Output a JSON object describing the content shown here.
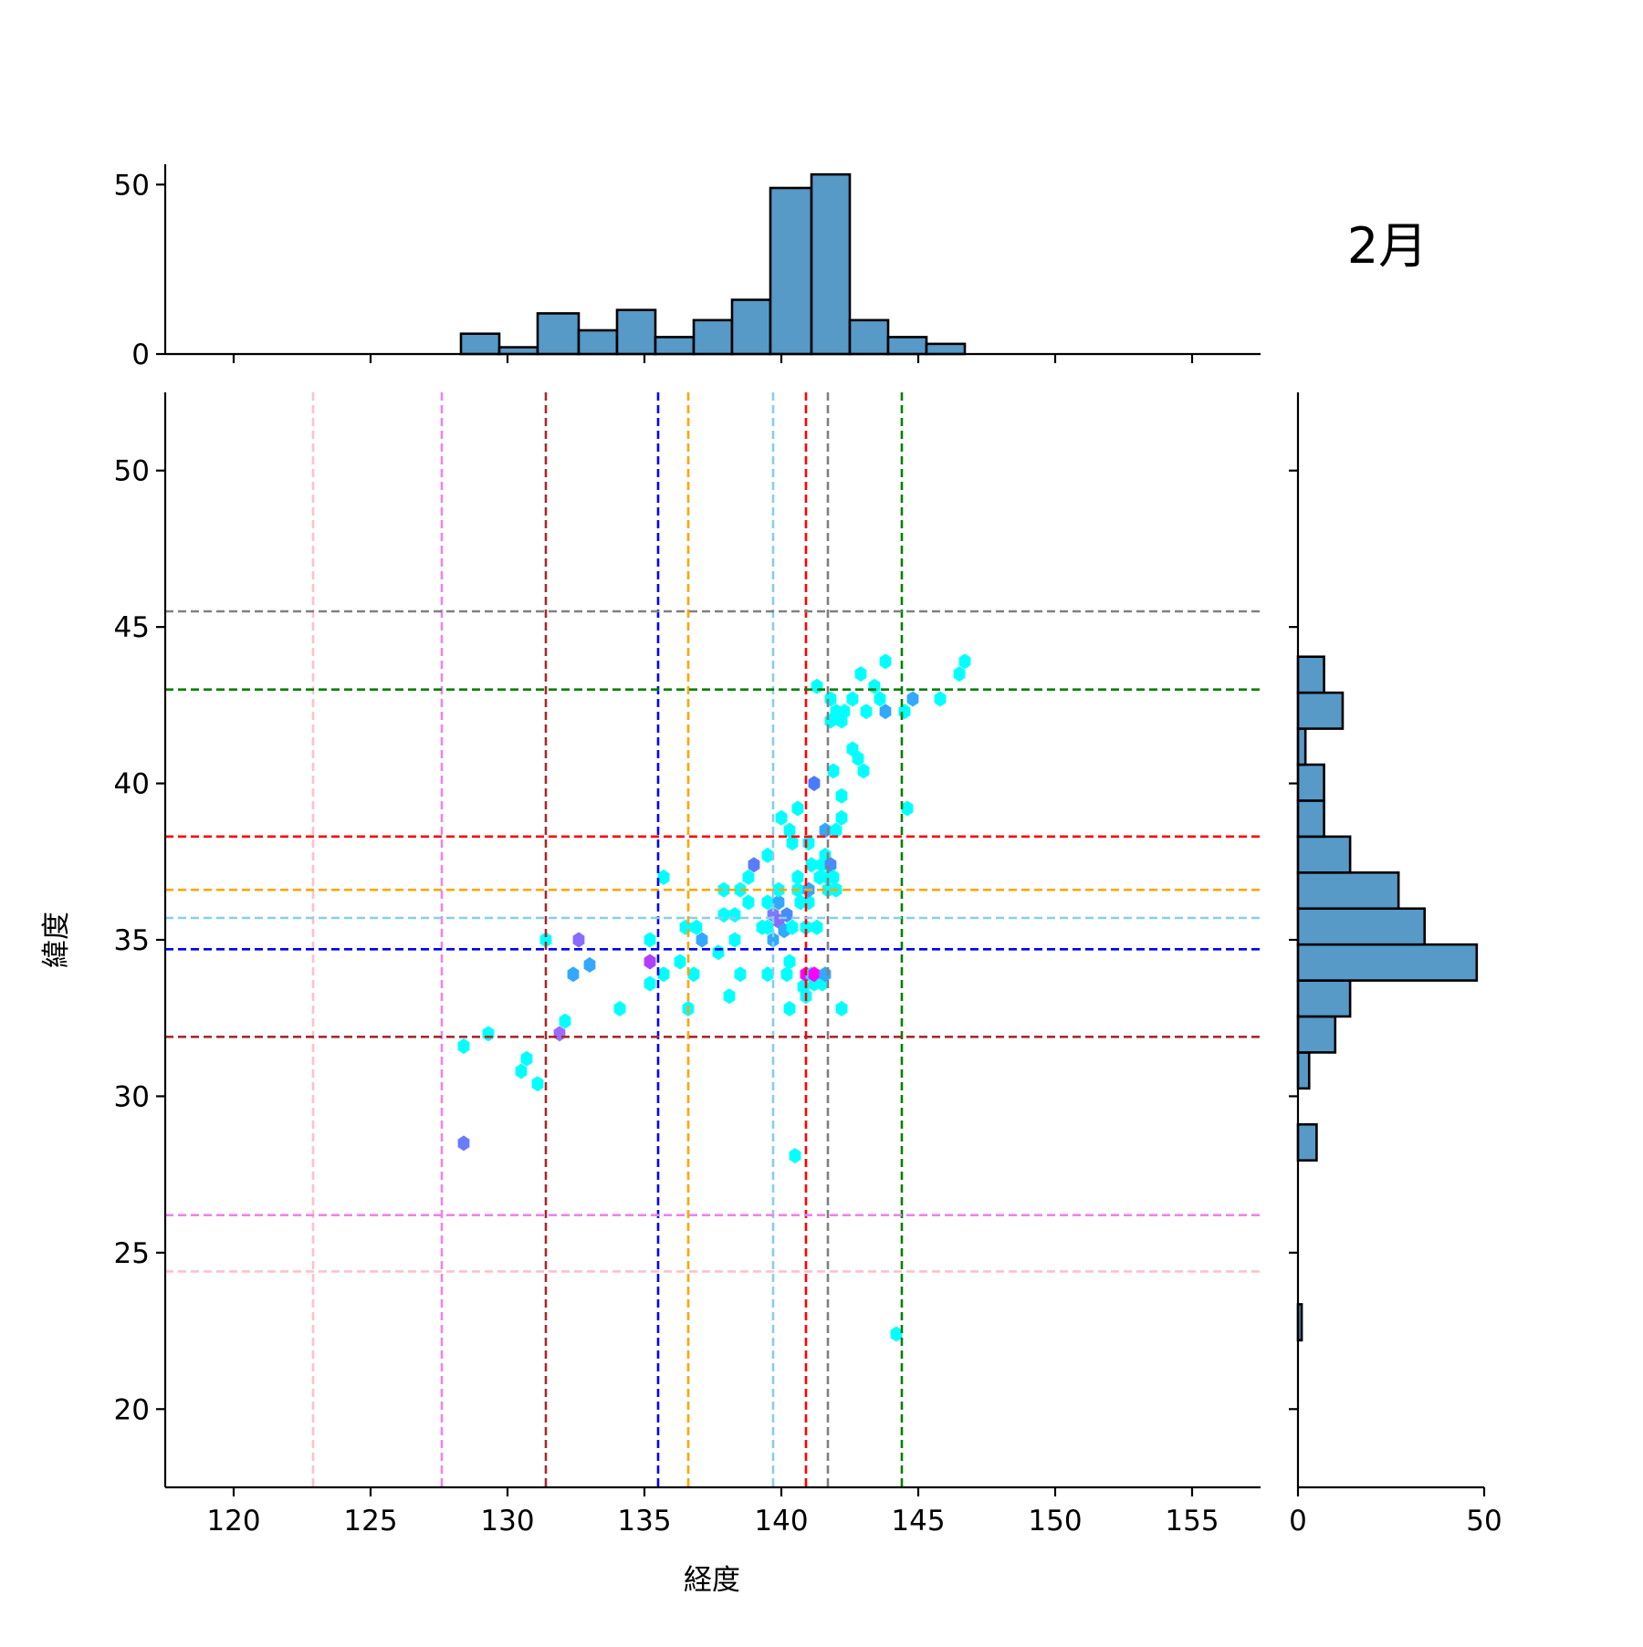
{
  "chart_data": {
    "type": "jointplot-hexbin",
    "title": "2月",
    "xlabel": "経度",
    "ylabel": "緯度",
    "xlim": [
      117.5,
      157.5
    ],
    "ylim": [
      17.5,
      52.5
    ],
    "xticks": [
      120,
      125,
      130,
      135,
      140,
      145,
      150,
      155
    ],
    "yticks": [
      20,
      25,
      30,
      35,
      40,
      45,
      50
    ],
    "grid": false,
    "marginal_color": "#5799c7",
    "hex_points": [
      {
        "x": 128.4,
        "y": 31.6,
        "c": "#00ffff"
      },
      {
        "x": 129.3,
        "y": 32.0,
        "c": "#00ffff"
      },
      {
        "x": 130.5,
        "y": 30.8,
        "c": "#00ffff"
      },
      {
        "x": 130.7,
        "y": 31.2,
        "c": "#00ffff"
      },
      {
        "x": 131.1,
        "y": 30.4,
        "c": "#00ffff"
      },
      {
        "x": 131.4,
        "y": 35.0,
        "c": "#00ffff"
      },
      {
        "x": 131.9,
        "y": 32.0,
        "c": "#9b6bff"
      },
      {
        "x": 132.1,
        "y": 32.4,
        "c": "#00ffff"
      },
      {
        "x": 132.4,
        "y": 33.9,
        "c": "#33a8ff"
      },
      {
        "x": 132.6,
        "y": 35.0,
        "c": "#8a6bff"
      },
      {
        "x": 133.0,
        "y": 34.2,
        "c": "#33a8ff"
      },
      {
        "x": 128.4,
        "y": 28.5,
        "c": "#6b7bff"
      },
      {
        "x": 134.1,
        "y": 32.8,
        "c": "#00ffff"
      },
      {
        "x": 135.2,
        "y": 35.0,
        "c": "#00ffff"
      },
      {
        "x": 135.2,
        "y": 34.3,
        "c": "#b040ff"
      },
      {
        "x": 135.2,
        "y": 33.6,
        "c": "#00ffff"
      },
      {
        "x": 135.7,
        "y": 33.9,
        "c": "#00ffff"
      },
      {
        "x": 135.7,
        "y": 37.0,
        "c": "#00ffff"
      },
      {
        "x": 136.3,
        "y": 34.3,
        "c": "#00ffff"
      },
      {
        "x": 136.5,
        "y": 35.4,
        "c": "#00ffff"
      },
      {
        "x": 136.6,
        "y": 32.8,
        "c": "#00ffff"
      },
      {
        "x": 136.8,
        "y": 33.9,
        "c": "#00ffff"
      },
      {
        "x": 136.9,
        "y": 35.4,
        "c": "#00ffff"
      },
      {
        "x": 137.1,
        "y": 35.0,
        "c": "#33a8ff"
      },
      {
        "x": 137.7,
        "y": 34.6,
        "c": "#00ffff"
      },
      {
        "x": 137.9,
        "y": 35.8,
        "c": "#00ffff"
      },
      {
        "x": 137.9,
        "y": 36.6,
        "c": "#00ffff"
      },
      {
        "x": 138.1,
        "y": 33.2,
        "c": "#00ffff"
      },
      {
        "x": 138.3,
        "y": 35.0,
        "c": "#00ffff"
      },
      {
        "x": 138.3,
        "y": 35.8,
        "c": "#00ffff"
      },
      {
        "x": 138.5,
        "y": 33.9,
        "c": "#00ffff"
      },
      {
        "x": 138.5,
        "y": 36.6,
        "c": "#00ffff"
      },
      {
        "x": 138.8,
        "y": 36.2,
        "c": "#00ffff"
      },
      {
        "x": 138.8,
        "y": 37.0,
        "c": "#00ffff"
      },
      {
        "x": 139.0,
        "y": 37.4,
        "c": "#5b7bff"
      },
      {
        "x": 139.3,
        "y": 35.4,
        "c": "#00ffff"
      },
      {
        "x": 139.5,
        "y": 35.4,
        "c": "#00ffff"
      },
      {
        "x": 139.5,
        "y": 36.2,
        "c": "#00ffff"
      },
      {
        "x": 139.5,
        "y": 37.7,
        "c": "#00ffff"
      },
      {
        "x": 139.5,
        "y": 33.9,
        "c": "#00ffff"
      },
      {
        "x": 139.7,
        "y": 35.0,
        "c": "#33a8ff"
      },
      {
        "x": 139.7,
        "y": 35.8,
        "c": "#7b7bff"
      },
      {
        "x": 139.9,
        "y": 35.6,
        "c": "#8a6bff"
      },
      {
        "x": 139.9,
        "y": 36.2,
        "c": "#33a8ff"
      },
      {
        "x": 139.9,
        "y": 36.6,
        "c": "#00ffff"
      },
      {
        "x": 140.0,
        "y": 38.9,
        "c": "#00ffff"
      },
      {
        "x": 140.1,
        "y": 35.3,
        "c": "#33a8ff"
      },
      {
        "x": 140.2,
        "y": 35.8,
        "c": "#4a8bff"
      },
      {
        "x": 140.2,
        "y": 33.9,
        "c": "#00ffff"
      },
      {
        "x": 140.3,
        "y": 38.5,
        "c": "#00ffff"
      },
      {
        "x": 140.3,
        "y": 34.3,
        "c": "#00ffff"
      },
      {
        "x": 140.3,
        "y": 32.8,
        "c": "#00ffff"
      },
      {
        "x": 140.4,
        "y": 38.1,
        "c": "#00ffff"
      },
      {
        "x": 140.4,
        "y": 35.4,
        "c": "#00ffff"
      },
      {
        "x": 140.5,
        "y": 28.1,
        "c": "#00ffff"
      },
      {
        "x": 140.6,
        "y": 39.2,
        "c": "#00ffff"
      },
      {
        "x": 140.6,
        "y": 37.0,
        "c": "#00ffff"
      },
      {
        "x": 140.6,
        "y": 36.6,
        "c": "#00ffff"
      },
      {
        "x": 140.7,
        "y": 36.2,
        "c": "#00ffff"
      },
      {
        "x": 140.8,
        "y": 33.5,
        "c": "#00ffff"
      },
      {
        "x": 140.9,
        "y": 33.9,
        "c": "#ff00ff"
      },
      {
        "x": 140.9,
        "y": 35.4,
        "c": "#00ffff"
      },
      {
        "x": 140.9,
        "y": 33.2,
        "c": "#00ffff"
      },
      {
        "x": 141.0,
        "y": 36.2,
        "c": "#00ffff"
      },
      {
        "x": 141.0,
        "y": 36.6,
        "c": "#33a8ff"
      },
      {
        "x": 141.0,
        "y": 38.1,
        "c": "#00ffff"
      },
      {
        "x": 141.1,
        "y": 37.4,
        "c": "#00ffff"
      },
      {
        "x": 141.1,
        "y": 33.9,
        "c": "#00ffff"
      },
      {
        "x": 141.2,
        "y": 33.6,
        "c": "#00ffff"
      },
      {
        "x": 141.2,
        "y": 40.0,
        "c": "#4a7bff"
      },
      {
        "x": 141.2,
        "y": 33.9,
        "c": "#ff00ff"
      },
      {
        "x": 141.3,
        "y": 43.1,
        "c": "#00ffff"
      },
      {
        "x": 141.3,
        "y": 35.4,
        "c": "#00ffff"
      },
      {
        "x": 141.4,
        "y": 37.0,
        "c": "#00ffff"
      },
      {
        "x": 141.5,
        "y": 33.6,
        "c": "#00ffff"
      },
      {
        "x": 141.5,
        "y": 37.4,
        "c": "#00ffff"
      },
      {
        "x": 141.6,
        "y": 38.5,
        "c": "#33a8ff"
      },
      {
        "x": 141.6,
        "y": 37.7,
        "c": "#00ffff"
      },
      {
        "x": 141.6,
        "y": 33.9,
        "c": "#33a8ff"
      },
      {
        "x": 141.7,
        "y": 36.6,
        "c": "#00ffff"
      },
      {
        "x": 141.7,
        "y": 37.0,
        "c": "#00ffff"
      },
      {
        "x": 141.8,
        "y": 37.4,
        "c": "#4a8bff"
      },
      {
        "x": 141.8,
        "y": 42.0,
        "c": "#00ffff"
      },
      {
        "x": 141.8,
        "y": 42.7,
        "c": "#00ffff"
      },
      {
        "x": 141.9,
        "y": 40.4,
        "c": "#00ffff"
      },
      {
        "x": 141.9,
        "y": 37.0,
        "c": "#00ffff"
      },
      {
        "x": 142.0,
        "y": 42.3,
        "c": "#00ffff"
      },
      {
        "x": 142.0,
        "y": 38.5,
        "c": "#00ffff"
      },
      {
        "x": 142.0,
        "y": 36.6,
        "c": "#00ffff"
      },
      {
        "x": 142.2,
        "y": 42.0,
        "c": "#00ffff"
      },
      {
        "x": 142.2,
        "y": 38.9,
        "c": "#00ffff"
      },
      {
        "x": 142.2,
        "y": 39.6,
        "c": "#00ffff"
      },
      {
        "x": 142.2,
        "y": 32.8,
        "c": "#00ffff"
      },
      {
        "x": 142.3,
        "y": 42.3,
        "c": "#00ffff"
      },
      {
        "x": 142.6,
        "y": 42.7,
        "c": "#00ffff"
      },
      {
        "x": 142.6,
        "y": 41.1,
        "c": "#00ffff"
      },
      {
        "x": 142.8,
        "y": 40.8,
        "c": "#00ffff"
      },
      {
        "x": 142.9,
        "y": 43.5,
        "c": "#00ffff"
      },
      {
        "x": 143.0,
        "y": 40.4,
        "c": "#00ffff"
      },
      {
        "x": 143.1,
        "y": 42.3,
        "c": "#00ffff"
      },
      {
        "x": 143.4,
        "y": 43.1,
        "c": "#00ffff"
      },
      {
        "x": 143.6,
        "y": 42.7,
        "c": "#00ffff"
      },
      {
        "x": 143.8,
        "y": 43.9,
        "c": "#00ffff"
      },
      {
        "x": 143.8,
        "y": 42.3,
        "c": "#33a8ff"
      },
      {
        "x": 144.2,
        "y": 22.4,
        "c": "#00ffff"
      },
      {
        "x": 144.5,
        "y": 42.3,
        "c": "#00ffff"
      },
      {
        "x": 144.6,
        "y": 39.2,
        "c": "#00ffff"
      },
      {
        "x": 144.8,
        "y": 42.7,
        "c": "#33a8ff"
      },
      {
        "x": 145.8,
        "y": 42.7,
        "c": "#00ffff"
      },
      {
        "x": 146.5,
        "y": 43.5,
        "c": "#00ffff"
      },
      {
        "x": 146.7,
        "y": 43.9,
        "c": "#00ffff"
      }
    ],
    "vertical_lines": [
      {
        "x": 122.9,
        "color": "#ffc0cb"
      },
      {
        "x": 127.6,
        "color": "#ee82ee"
      },
      {
        "x": 131.4,
        "color": "#a52a2a"
      },
      {
        "x": 135.5,
        "color": "#0000ff"
      },
      {
        "x": 136.6,
        "color": "#ffa500"
      },
      {
        "x": 139.7,
        "color": "#87ceeb"
      },
      {
        "x": 140.9,
        "color": "#ff0000"
      },
      {
        "x": 141.7,
        "color": "#808080"
      },
      {
        "x": 144.4,
        "color": "#008000"
      }
    ],
    "horizontal_lines": [
      {
        "y": 45.5,
        "color": "#808080"
      },
      {
        "y": 43.0,
        "color": "#008000"
      },
      {
        "y": 38.3,
        "color": "#ff0000"
      },
      {
        "y": 36.6,
        "color": "#ffa500"
      },
      {
        "y": 35.7,
        "color": "#87ceeb"
      },
      {
        "y": 34.7,
        "color": "#0000ff"
      },
      {
        "y": 31.9,
        "color": "#a52a2a"
      },
      {
        "y": 26.2,
        "color": "#ee82ee"
      },
      {
        "y": 24.4,
        "color": "#ffc0cb"
      }
    ],
    "top_histogram": {
      "ylim": [
        0,
        56
      ],
      "yticks": [
        0,
        50
      ],
      "bin_edges": [
        128.3,
        129.7,
        131.1,
        132.6,
        134.0,
        135.4,
        136.8,
        138.2,
        139.6,
        141.1,
        142.5,
        143.9,
        145.3,
        146.7
      ],
      "counts": [
        6,
        2,
        12,
        7,
        13,
        5,
        10,
        16,
        49,
        53,
        10,
        5,
        3
      ]
    },
    "right_histogram": {
      "xlim": [
        0,
        50
      ],
      "xticks": [
        0,
        50
      ],
      "bin_edges": [
        22.2,
        23.35,
        24.5,
        25.65,
        26.8,
        27.95,
        29.1,
        30.25,
        31.4,
        32.55,
        33.7,
        34.85,
        36.0,
        37.15,
        38.3,
        39.45,
        40.6,
        41.75,
        42.9,
        44.05
      ],
      "counts": [
        1,
        0,
        0,
        0,
        0,
        5,
        0,
        3,
        10,
        14,
        48,
        34,
        27,
        14,
        7,
        7,
        2,
        12,
        7
      ]
    }
  }
}
